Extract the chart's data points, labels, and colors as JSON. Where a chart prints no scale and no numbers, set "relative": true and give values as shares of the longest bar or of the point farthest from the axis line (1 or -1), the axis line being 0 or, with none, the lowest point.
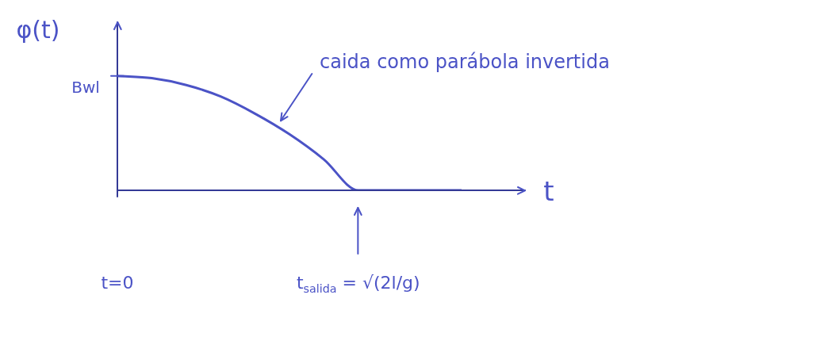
{
  "chart_data": {
    "type": "line",
    "relative": true,
    "color": "#4b53c6",
    "xlabel": "t",
    "ylabel": "φ(t)",
    "categories": [
      "t=0",
      null,
      null,
      null,
      null,
      null,
      null,
      "t$_{salida}$ = √(2l/g)",
      null,
      null,
      null
    ],
    "values": [
      1,
      0.98,
      0.92,
      0.82,
      0.67,
      0.49,
      0.27,
      0,
      0,
      0,
      0
    ],
    "annotations": [
      "caida como parábola invertida",
      "Bwl"
    ],
    "legend": false,
    "marker": "none",
    "line_style": "solid"
  }
}
